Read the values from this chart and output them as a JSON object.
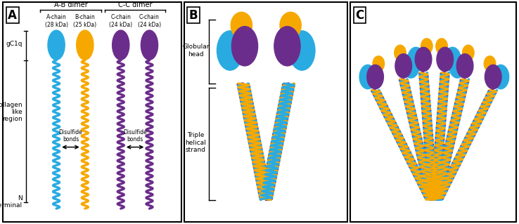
{
  "colors": {
    "cyan": "#29ABE2",
    "gold": "#F7A800",
    "purple": "#6B2D8B",
    "black": "#000000",
    "white": "#FFFFFF"
  },
  "panel_A": {
    "ab_dimer_label": "A-B dimer",
    "cc_dimer_label": "C-C dimer",
    "chain_labels": [
      "A-chain\n(28 kDa)",
      "B-chain\n(25 kDa)",
      "C-chain\n(24 kDa)",
      "C-chain\n(24 kDa)"
    ],
    "side_labels": [
      "gC1q",
      "Collagen\nlike\nregion",
      "N\nterminal"
    ],
    "disulfide_label": "Disulfide\nbonds"
  },
  "panel_B": {
    "globular_head_label": "Globular\nhead",
    "triple_helical_label": "Triple\nhelical\nstrand"
  }
}
